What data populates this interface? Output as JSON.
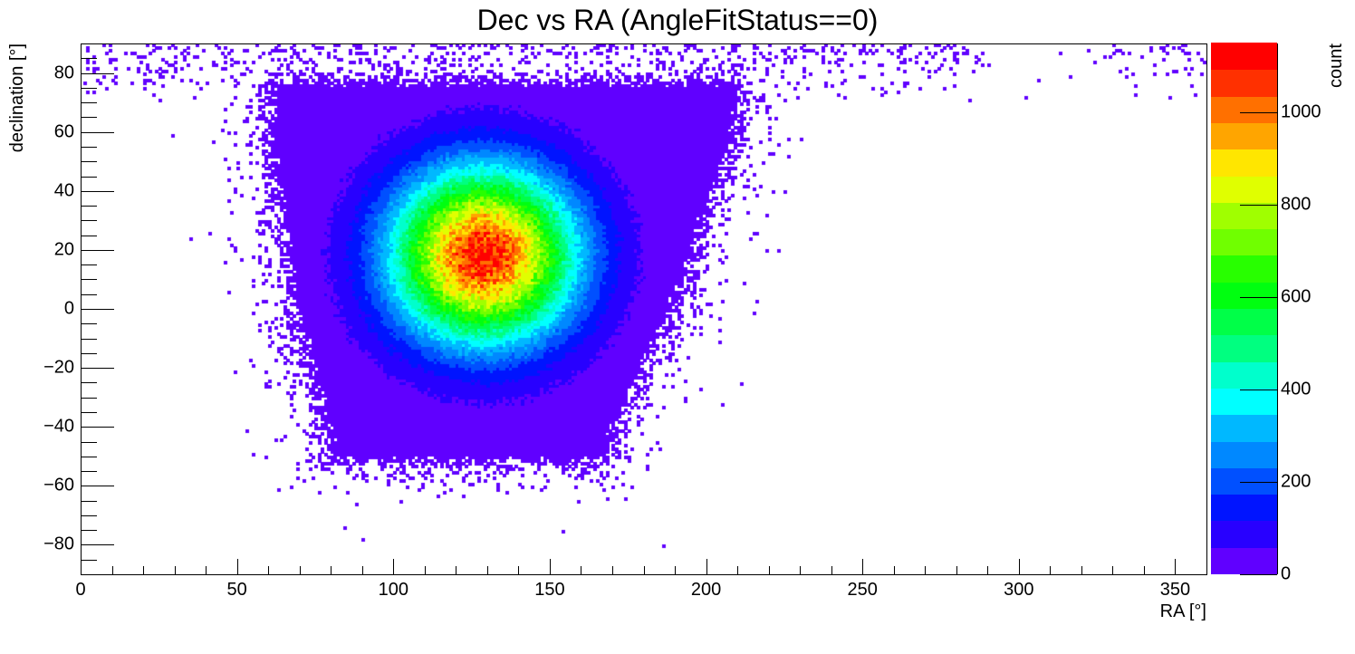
{
  "chart_data": {
    "type": "heatmap",
    "title": "Dec vs RA (AngleFitStatus==0)",
    "xlabel": "RA [°]",
    "ylabel": "declination [°]",
    "zlabel": "count",
    "xlim": [
      0,
      360
    ],
    "ylim": [
      -90,
      90
    ],
    "zlim": [
      0,
      1150
    ],
    "bin_size_deg": [
      1,
      1
    ],
    "x_ticks": [
      "0",
      "50",
      "100",
      "150",
      "200",
      "250",
      "300",
      "350"
    ],
    "x_tick_values": [
      0,
      50,
      100,
      150,
      200,
      250,
      300,
      350
    ],
    "y_ticks": [
      "−80",
      "−60",
      "−40",
      "−20",
      "0",
      "20",
      "40",
      "60",
      "80"
    ],
    "y_tick_values": [
      -80,
      -60,
      -40,
      -20,
      0,
      20,
      40,
      60,
      80
    ],
    "z_ticks": [
      "0",
      "200",
      "400",
      "600",
      "800",
      "1000"
    ],
    "z_tick_values": [
      0,
      200,
      400,
      600,
      800,
      1000
    ],
    "peak": {
      "ra": 129,
      "dec": 18,
      "count": 1100,
      "sigma_ra": 20,
      "sigma_dec": 20
    },
    "populated_region": {
      "dense_dec_range": [
        -50,
        75
      ],
      "dense_ra_halfwidth_at_dec": [
        [
          -45,
          42
        ],
        [
          0,
          58
        ],
        [
          60,
          72
        ]
      ],
      "ra_center": 130,
      "sparse_top_band_dec": [
        70,
        90
      ],
      "sparse_top_band_ra": [
        0,
        360
      ]
    },
    "palette": [
      "#6000ff",
      "#2800ff",
      "#0014ff",
      "#0050ff",
      "#0088ff",
      "#00b8ff",
      "#00ffff",
      "#00ffcc",
      "#00ff80",
      "#00ff48",
      "#00ff10",
      "#28ff00",
      "#70ff00",
      "#a0ff00",
      "#e0ff00",
      "#ffe600",
      "#ffa500",
      "#ff7000",
      "#ff3000",
      "#ff0000"
    ],
    "grid": false,
    "legend": "colorbar-right"
  }
}
